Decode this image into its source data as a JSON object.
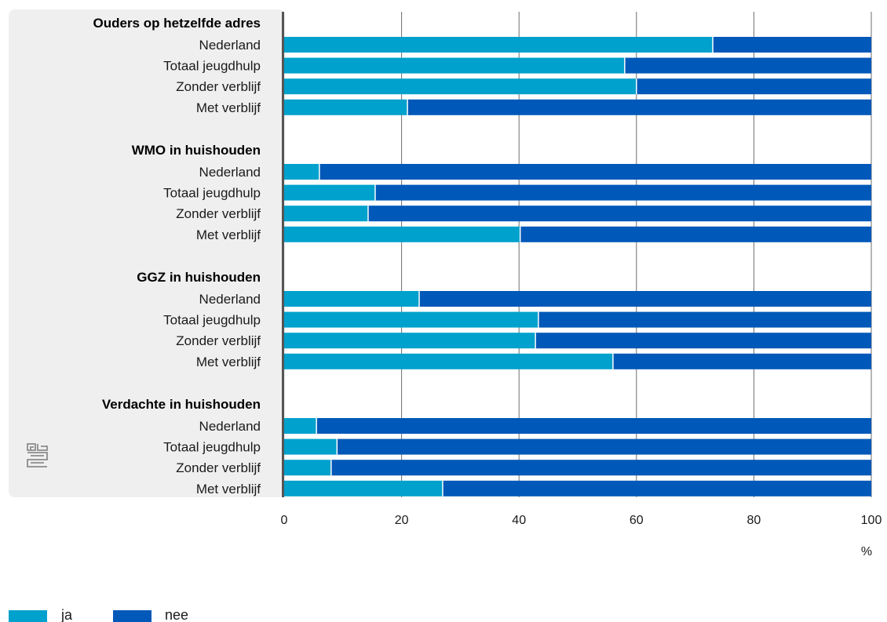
{
  "chart_data": {
    "type": "bar",
    "orientation": "horizontal",
    "stacked": true,
    "unit": "%",
    "xlim": [
      0,
      100
    ],
    "xticks": [
      "0",
      "20",
      "40",
      "60",
      "80",
      "100"
    ],
    "grid": true,
    "legend_position": "bottom-left",
    "categories": [
      "Nederland",
      "Totaal jeugdhulp",
      "Zonder verblijf",
      "Met verblijf"
    ],
    "groups": [
      {
        "title": "Ouders op hetzelfde adres",
        "ja": [
          73,
          58,
          60,
          21
        ]
      },
      {
        "title": "WMO in huishouden",
        "ja": [
          6,
          15.5,
          14.3,
          40.2
        ]
      },
      {
        "title": "GGZ in huishouden",
        "ja": [
          23,
          43.3,
          42.8,
          56
        ]
      },
      {
        "title": "Verdachte in huishouden",
        "ja": [
          5.5,
          9,
          8,
          27
        ]
      }
    ],
    "series": [
      {
        "name": "ja",
        "color": "#00a1cd"
      },
      {
        "name": "nee",
        "color": "#0058b8"
      }
    ],
    "panel_color": "#efefef",
    "logo_icon": "cbs-logo-icon"
  }
}
